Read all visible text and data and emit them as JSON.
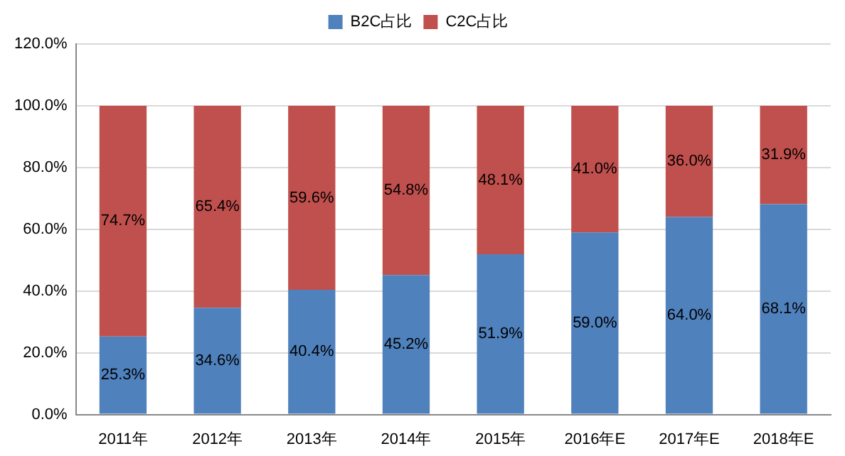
{
  "chart_data": {
    "type": "bar",
    "stacked": true,
    "legend": "top",
    "grid": "y",
    "categories": [
      "2011年",
      "2012年",
      "2013年",
      "2014年",
      "2015年",
      "2016年E",
      "2017年E",
      "2018年E"
    ],
    "ylim": [
      0,
      120
    ],
    "yticks": [
      {
        "value": 0,
        "label": "0.0%"
      },
      {
        "value": 20,
        "label": "20.0%"
      },
      {
        "value": 40,
        "label": "40.0%"
      },
      {
        "value": 60,
        "label": "60.0%"
      },
      {
        "value": 80,
        "label": "80.0%"
      },
      {
        "value": 100,
        "label": "100.0%"
      },
      {
        "value": 120,
        "label": "120.0%"
      }
    ],
    "series": [
      {
        "name": "B2C占比",
        "color": "#4f81bd",
        "values": [
          25.3,
          34.6,
          40.4,
          45.2,
          51.9,
          59.0,
          64.0,
          68.1
        ],
        "value_labels": [
          "25.3%",
          "34.6%",
          "40.4%",
          "45.2%",
          "51.9%",
          "59.0%",
          "64.0%",
          "68.1%"
        ]
      },
      {
        "name": "C2C占比",
        "color": "#c0504d",
        "values": [
          74.7,
          65.4,
          59.6,
          54.8,
          48.1,
          41.0,
          36.0,
          31.9
        ],
        "value_labels": [
          "74.7%",
          "65.4%",
          "59.6%",
          "54.8%",
          "48.1%",
          "41.0%",
          "36.0%",
          "31.9%"
        ]
      }
    ]
  }
}
